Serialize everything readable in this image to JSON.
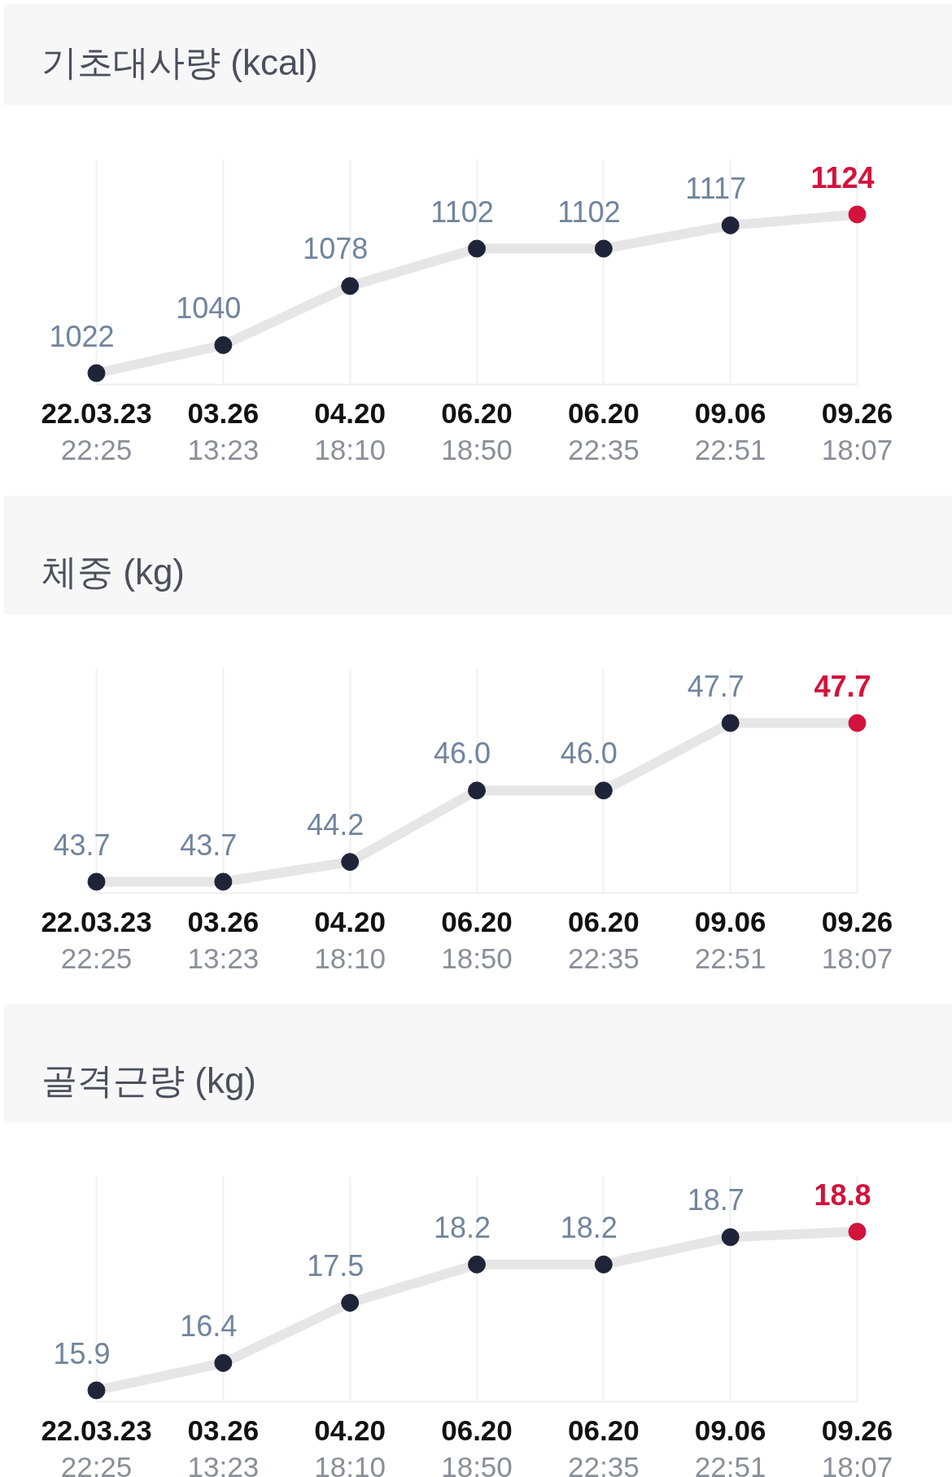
{
  "chart_data": [
    {
      "type": "line",
      "title": "기초대사량 (kcal)",
      "categories": [
        "22.03.23\n22:25",
        "03.26\n13:23",
        "04.20\n18:10",
        "06.20\n18:50",
        "06.20\n22:35",
        "09.06\n22:51",
        "09.26\n18:07"
      ],
      "values": [
        1022,
        1040,
        1078,
        1102,
        1102,
        1117,
        1124
      ],
      "color": "#e6e6e6",
      "colors": [
        "#1f2438",
        "#1f2438",
        "#1f2438",
        "#1f2438",
        "#1f2438",
        "#1f2438",
        "#d3133b"
      ],
      "marker": "circle",
      "data_labels": true,
      "grid": "x"
    },
    {
      "type": "line",
      "title": "체중 (kg)",
      "categories": [
        "22.03.23\n22:25",
        "03.26\n13:23",
        "04.20\n18:10",
        "06.20\n18:50",
        "06.20\n22:35",
        "09.06\n22:51",
        "09.26\n18:07"
      ],
      "values": [
        43.7,
        43.7,
        44.2,
        46.0,
        46.0,
        47.7,
        47.7
      ],
      "value_labels": [
        "43.7",
        "43.7",
        "44.2",
        "46.0",
        "46.0",
        "47.7",
        "47.7"
      ],
      "color": "#e6e6e6",
      "colors": [
        "#1f2438",
        "#1f2438",
        "#1f2438",
        "#1f2438",
        "#1f2438",
        "#1f2438",
        "#d3133b"
      ],
      "marker": "circle",
      "grid": "x"
    },
    {
      "type": "line",
      "title": "골격근량 (kg)",
      "categories": [
        "22.03.23\n22:25",
        "03.26\n13:23",
        "04.20\n18:10",
        "06.20\n18:50",
        "06.20\n22:35",
        "09.06\n22:51",
        "09.26\n18:07"
      ],
      "values": [
        15.9,
        16.4,
        17.5,
        18.2,
        18.2,
        18.7,
        18.8
      ],
      "color": "#e6e6e6",
      "colors": [
        "#1f2438",
        "#1f2438",
        "#1f2438",
        "#1f2438",
        "#1f2438",
        "#1f2438",
        "#d3133b"
      ],
      "marker": "circle",
      "data_labels": true,
      "grid": "x"
    }
  ]
}
